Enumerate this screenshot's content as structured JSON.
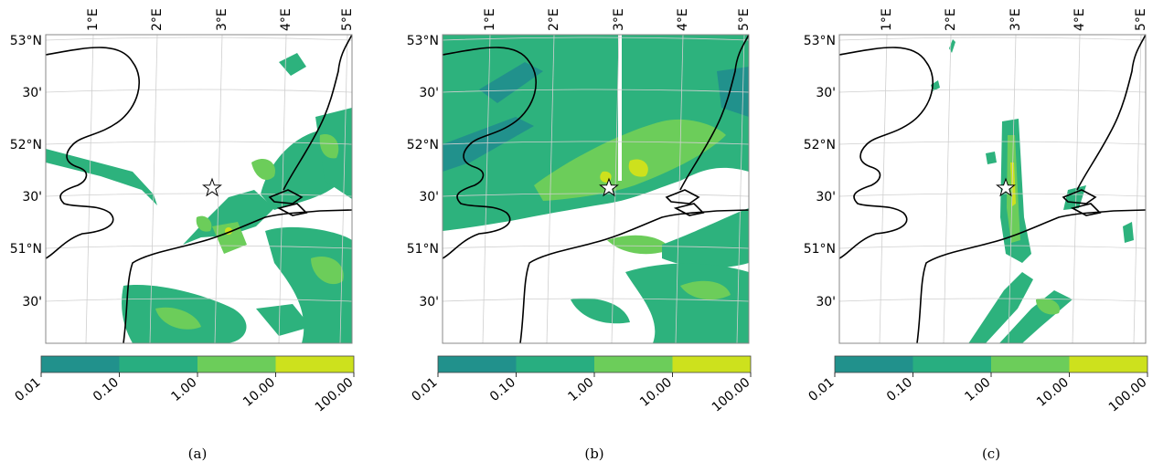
{
  "longitude_labels": [
    "1°E",
    "2°E",
    "3°E",
    "4°E",
    "5°E"
  ],
  "latitude_labels": [
    "53°N",
    "30'",
    "52°N",
    "30'",
    "51°N",
    "30'"
  ],
  "colorbar": {
    "ticks": [
      "0.01",
      "0.10",
      "1.00",
      "10.00",
      "100.00"
    ],
    "colors": [
      "#21918c",
      "#28ae80",
      "#6ccd5a",
      "#cde11d"
    ]
  },
  "precip_colors": {
    "low": "#21918c",
    "mid": "#2db27d",
    "high": "#6ccd5a",
    "peak": "#cde11d"
  },
  "panels": [
    {
      "id": "a",
      "caption": "(a)"
    },
    {
      "id": "b",
      "caption": "(b)"
    },
    {
      "id": "c",
      "caption": "(c)"
    }
  ]
}
